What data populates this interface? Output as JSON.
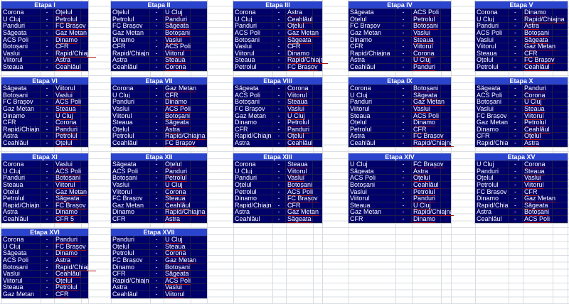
{
  "ui": {
    "dash": "-"
  },
  "colors": {
    "header_bg": "#2b44cd",
    "body_bg": "#00006b",
    "team_text": "#ffffff",
    "team_underline": "#a51414",
    "sheet_gridline": "#d9dde2"
  },
  "stages": [
    {
      "title": "Etapa I",
      "matches": [
        [
          "Corona",
          "Oțelul"
        ],
        [
          "U Cluj",
          "Petrolul"
        ],
        [
          "Panduri",
          "FC Brașov"
        ],
        [
          "Săgeata",
          "Gaz Metan"
        ],
        [
          "ACS Poli",
          "Dinamo"
        ],
        [
          "Botoșani",
          "CFR"
        ],
        [
          "Vaslui",
          "Rapid/Chiajna"
        ],
        [
          "Viitorul",
          "Astra"
        ],
        [
          "Steaua",
          "Ceahlăul"
        ]
      ]
    },
    {
      "title": "Etapa II",
      "matches": [
        [
          "Oțelul",
          "U Cluj"
        ],
        [
          "Petrolul",
          "Panduri"
        ],
        [
          "FC Brașov",
          "Săgeata"
        ],
        [
          "Gaz Metan",
          "Botoșani"
        ],
        [
          "Dinamo",
          "Vaslui"
        ],
        [
          "CFR",
          "ACS Poli"
        ],
        [
          "Rapid/Chiajna",
          "Viitorul"
        ],
        [
          "Astra",
          "Steaua"
        ],
        [
          "Ceahlăul",
          "Corona"
        ]
      ]
    },
    {
      "title": "Etapa III",
      "matches": [
        [
          "Corona",
          "Astra"
        ],
        [
          "U Cluj",
          "Ceahlăul"
        ],
        [
          "Panduri",
          "Oțelul"
        ],
        [
          "ACS Poli",
          "Gaz Metan"
        ],
        [
          "Botoșani",
          "Săgeata"
        ],
        [
          "Vaslui",
          "CFR"
        ],
        [
          "Viitorul",
          "Dinamo"
        ],
        [
          "Steaua",
          "Rapid/Chiajna"
        ],
        [
          "Petrolul",
          "FC Brașov"
        ]
      ]
    },
    {
      "title": "Etapa IV",
      "matches": [
        [
          "Săgeata",
          "ACS Poli"
        ],
        [
          "Oțelul",
          "Petrolul"
        ],
        [
          "FC Brașov",
          "Botoșani"
        ],
        [
          "Gaz Metan",
          "Vaslui"
        ],
        [
          "Dinamo",
          "Steaua"
        ],
        [
          "CFR",
          "Viitorul"
        ],
        [
          "Rapid/Chiajna",
          "Corona"
        ],
        [
          "Astra",
          "U Cluj"
        ],
        [
          "Ceahlăul",
          "Panduri"
        ]
      ]
    },
    {
      "title": "Etapa V",
      "matches": [
        [
          "Corona",
          "Dinamo"
        ],
        [
          "U Cluj",
          "Rapid/Chiajna"
        ],
        [
          "Panduri",
          "Astra"
        ],
        [
          "ACS Poli",
          "Botoșani"
        ],
        [
          "Vaslui",
          "Săgeata"
        ],
        [
          "Viitorul",
          "Gaz Metan"
        ],
        [
          "Steaua",
          "CFR"
        ],
        [
          "Oțelul",
          "FC Brașov"
        ],
        [
          "Petrolul",
          "Ceahlăul"
        ]
      ]
    },
    {
      "title": "Etapa VI",
      "matches": [
        [
          "Săgeata",
          "Viitorul"
        ],
        [
          "Botoșani",
          "Vaslui"
        ],
        [
          "FC Brașov",
          "ACS Poli"
        ],
        [
          "Gaz Metan",
          "Steaua"
        ],
        [
          "Dinamo",
          "U Cluj"
        ],
        [
          "CFR",
          "Corona"
        ],
        [
          "Rapid/Chiajna",
          "Panduri"
        ],
        [
          "Astra",
          "Petrolul"
        ],
        [
          "Ceahlăul",
          "Oțelul"
        ]
      ]
    },
    {
      "title": "Etapa VII",
      "matches": [
        [
          "Corona",
          "Gaz Metan"
        ],
        [
          "U Cluj",
          "CFR"
        ],
        [
          "Panduri",
          "Dinamo"
        ],
        [
          "Vaslui",
          "ACS Poli"
        ],
        [
          "Viitorul",
          "Botoșani"
        ],
        [
          "Steaua",
          "Săgeata"
        ],
        [
          "Oțelul",
          "Astra"
        ],
        [
          "Petrolul",
          "Rapid/Chiajna"
        ],
        [
          "Ceahlăul",
          "FC Brașov"
        ]
      ]
    },
    {
      "title": "Etapa VIII",
      "matches": [
        [
          "Săgeata",
          "Corona"
        ],
        [
          "ACS Poli",
          "Viitorul"
        ],
        [
          "Botoșani",
          "Steaua"
        ],
        [
          "FC Brașov",
          "Vaslui"
        ],
        [
          "Gaz Metan",
          "U Cluj"
        ],
        [
          "Dinamo",
          "Petrolul"
        ],
        [
          "CFR",
          "Panduri"
        ],
        [
          "Rapid/Chiajna",
          "Oțelul"
        ],
        [
          "Astra",
          "Ceahlăul"
        ]
      ]
    },
    {
      "title": "Etapa IX",
      "matches": [
        [
          "Corona",
          "Botoșani"
        ],
        [
          "U Cluj",
          "Săgeata"
        ],
        [
          "Panduri",
          "Gaz Metan"
        ],
        [
          "Viitorul",
          "Vaslui"
        ],
        [
          "Steaua",
          "ACS Poli"
        ],
        [
          "Oțelul",
          "Dinamo"
        ],
        [
          "Petrolul",
          "CFR"
        ],
        [
          "Astra",
          "FC Brașov"
        ],
        [
          "Ceahlăul",
          "Rapid/Chiajna"
        ]
      ]
    },
    {
      "title": "Etapa X",
      "matches": [
        [
          "Săgeata",
          "Panduri"
        ],
        [
          "ACS Poli",
          "Corona"
        ],
        [
          "Botoșani",
          "U Cluj"
        ],
        [
          "Vaslui",
          "Steaua"
        ],
        [
          "FC Brașov",
          "Viitorul"
        ],
        [
          "Gaz Metan",
          "Petrolul"
        ],
        [
          "Dinamo",
          "Ceahlăul"
        ],
        [
          "CFR",
          "Oțelul"
        ],
        [
          "Rapid/Chiajna",
          "Astra"
        ]
      ]
    },
    {
      "title": "Etapa XI",
      "matches": [
        [
          "Corona",
          "Vaslui"
        ],
        [
          "U Cluj",
          "ACS Poli"
        ],
        [
          "Panduri",
          "Botoșani"
        ],
        [
          "Steaua",
          "Viitorul"
        ],
        [
          "Oțelul",
          "Gaz Metan"
        ],
        [
          "Petrolul",
          "Săgeata"
        ],
        [
          "Rapid/Chiajna",
          "FC Brașov"
        ],
        [
          "Astra",
          "Dinamo"
        ],
        [
          "Ceahlăul",
          "CFR 5"
        ]
      ]
    },
    {
      "title": "Etapa XII",
      "matches": [
        [
          "Săgeata",
          "Oțelul"
        ],
        [
          "ACS Poli",
          "Panduri"
        ],
        [
          "Botoșani",
          "Petrolul"
        ],
        [
          "Vaslui",
          "U Cluj"
        ],
        [
          "Viitorul",
          "Corona"
        ],
        [
          "FC Brașov",
          "Steaua"
        ],
        [
          "Gaz Metan",
          "Ceahlăul"
        ],
        [
          "Dinamo",
          "Rapid/Chiajna"
        ],
        [
          "CFR",
          "Astra"
        ]
      ]
    },
    {
      "title": "Etapa XIII",
      "matches": [
        [
          "Corona",
          "Steaua"
        ],
        [
          "U Cluj",
          "Viitorul"
        ],
        [
          "Panduri",
          "Vaslui"
        ],
        [
          "Oțelul",
          "Botoșani"
        ],
        [
          "Petrolul",
          "ACS Poli"
        ],
        [
          "Dinamo",
          "FC Brașov"
        ],
        [
          "Rapid/Chiajna",
          "CFR"
        ],
        [
          "Astra",
          "Gaz Metan"
        ],
        [
          "Ceahlăul",
          "Săgeata"
        ]
      ]
    },
    {
      "title": "Etapa XIV",
      "matches": [
        [
          "U Cluj",
          "FC Brașov"
        ],
        [
          "Săgeata",
          "Astra"
        ],
        [
          "ACS Poli",
          "Oțelul"
        ],
        [
          "Botoșani",
          "Ceahlăul"
        ],
        [
          "Vaslui",
          "Petrolul"
        ],
        [
          "Viitorul",
          "Panduri"
        ],
        [
          "Steaua",
          "U Cluj"
        ],
        [
          "Gaz Metan",
          "Rapid/Chiajna"
        ],
        [
          "CFR",
          "Dinamo"
        ]
      ]
    },
    {
      "title": "Etapa XV",
      "matches": [
        [
          "U Cluj",
          "Corona"
        ],
        [
          "Panduri",
          "Steaua"
        ],
        [
          "Oțelul",
          "Vaslui"
        ],
        [
          "Petrolul",
          "Viitorul"
        ],
        [
          "FC Brașov",
          "CFR"
        ],
        [
          "Dinamo",
          "Gaz Metan"
        ],
        [
          "Rapid/Chiajna",
          "Săgeata"
        ],
        [
          "Astra",
          "Botoșani"
        ],
        [
          "Ceahlăul",
          "ACS Poli"
        ]
      ]
    },
    {
      "title": "Etapa XVI",
      "matches": [
        [
          "Corona",
          "Panduri"
        ],
        [
          "U Cluj",
          "FC Brașov"
        ],
        [
          "Săgeata",
          "Dinamo"
        ],
        [
          "ACS Poli",
          "Astra"
        ],
        [
          "Botoșani",
          "Rapid/Chiajna"
        ],
        [
          "Vaslui",
          "Ceahlăul"
        ],
        [
          "Viitorul",
          "Oțelul"
        ],
        [
          "Steaua",
          "Petrolul"
        ],
        [
          "Gaz Metan",
          "CFR"
        ]
      ]
    },
    {
      "title": "Etapa XVII",
      "matches": [
        [
          "Panduri",
          "U Cluj"
        ],
        [
          "Oțelul",
          "Steaua"
        ],
        [
          "Petrolul",
          "Corona"
        ],
        [
          "FC Brașov",
          "Gaz Metan"
        ],
        [
          "Dinamo",
          "Botoșani"
        ],
        [
          "CFR",
          "Săgeata"
        ],
        [
          "Rapid/Chiajna",
          "ACS Poli"
        ],
        [
          "Astra",
          "Vaslui"
        ],
        [
          "Ceahlăul",
          "Viitorul"
        ]
      ]
    }
  ]
}
